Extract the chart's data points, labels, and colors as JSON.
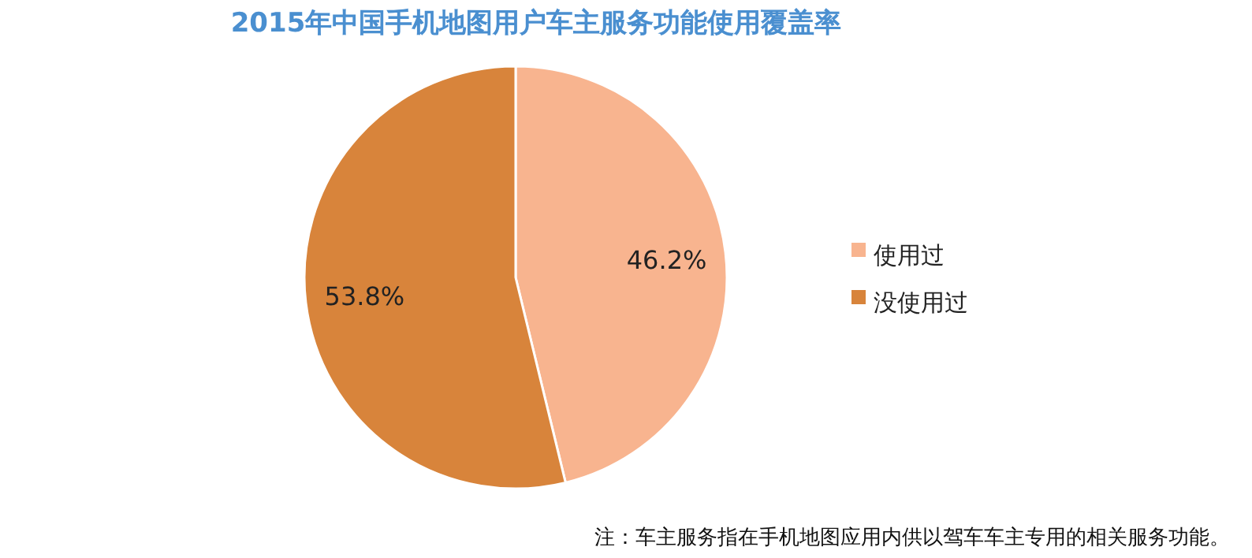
{
  "chart_data": {
    "type": "pie",
    "title": "2015年中国手机地图用户车主服务功能使用覆盖率",
    "categories": [
      "使用过",
      "没使用过"
    ],
    "values": [
      46.2,
      53.8
    ],
    "colors": [
      "#f8b48f",
      "#d8843b"
    ],
    "value_labels": [
      "46.2%",
      "53.8%"
    ],
    "legend": "right",
    "annotations": [
      "注：车主服务指在手机地图应用内供以驾车车主专用的相关服务功能。"
    ]
  }
}
